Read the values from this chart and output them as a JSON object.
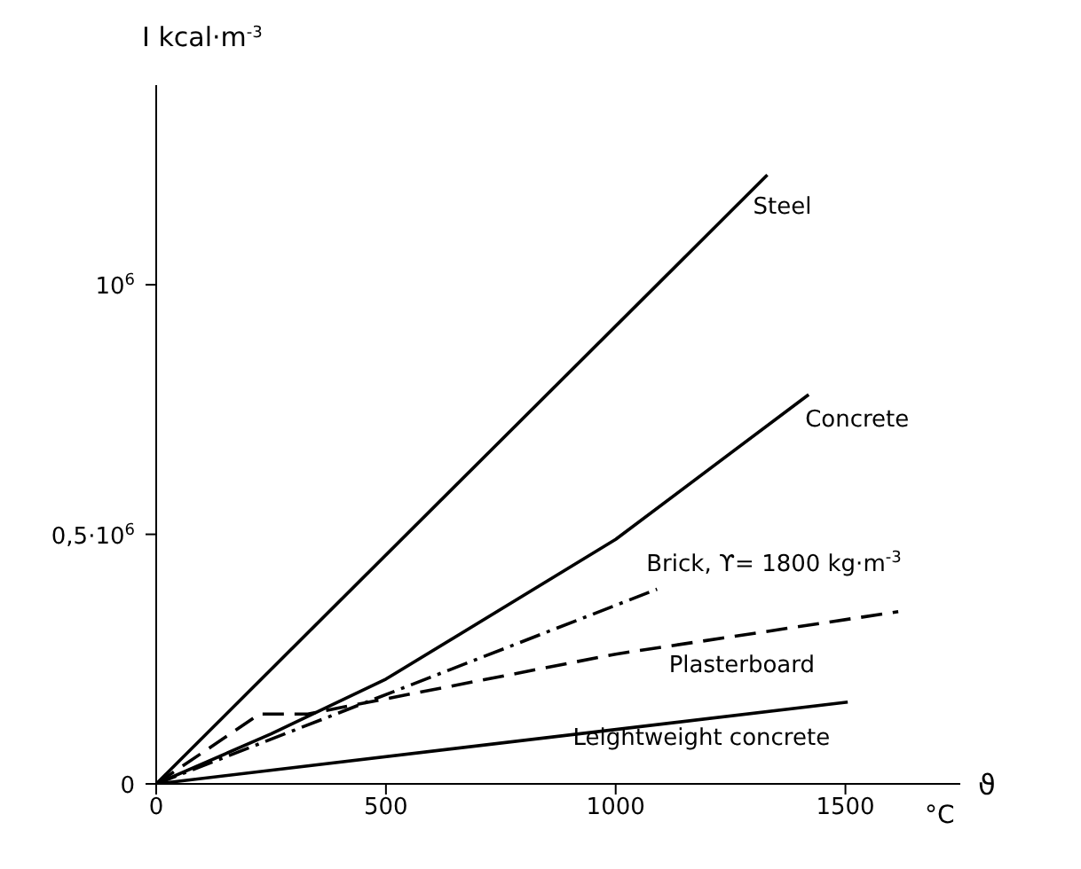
{
  "chart_data": {
    "type": "line",
    "xlabel": "ϑ",
    "ylabel": "I kcal·m$^{-3}$",
    "annotations": [
      "°C"
    ],
    "xlim": [
      0,
      1750
    ],
    "ylim": [
      0,
      1400000
    ],
    "xticks": [
      0,
      500,
      1000,
      1500
    ],
    "yticks": [
      0,
      {
        "value": 500000,
        "label": "0,5·10$^{6}$"
      },
      {
        "value": 1000000,
        "label": "10$^{6}$"
      }
    ],
    "grid": false,
    "legend": false,
    "marker": "none",
    "series": [
      {
        "name": "Steel",
        "color": "#000000",
        "line_style": "solid",
        "x": [
          0,
          1330
        ],
        "values": [
          0,
          1220000
        ]
      },
      {
        "name": "Concrete",
        "color": "#000000",
        "line_style": "solid",
        "x": [
          0,
          250,
          500,
          1000,
          1420
        ],
        "values": [
          0,
          100000,
          210000,
          490000,
          780000
        ]
      },
      {
        "name": "Brick, ϒ= 1800 kg·m$^{-3}$",
        "color": "#000000",
        "line_style": "dashdot",
        "x": [
          0,
          1090
        ],
        "values": [
          0,
          390000
        ]
      },
      {
        "name": "Plasterboard",
        "color": "#000000",
        "line_style": "dashed",
        "x": [
          0,
          225,
          330,
          1000,
          1615
        ],
        "values": [
          0,
          140000,
          140000,
          260000,
          345000
        ]
      },
      {
        "name": "Leightweight concrete",
        "color": "#000000",
        "line_style": "solid",
        "x": [
          0,
          1505
        ],
        "values": [
          0,
          164000
        ]
      }
    ]
  }
}
